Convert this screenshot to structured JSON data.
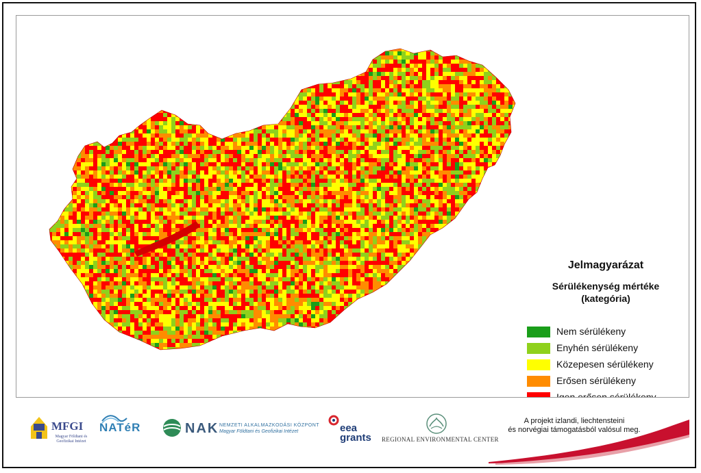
{
  "legend": {
    "title": "Jelmagyarázat",
    "subtitle": "Sérülékenység mértéke\n(kategória)",
    "items": [
      {
        "label": "Nem sérülékeny",
        "color": "#1a9e1a"
      },
      {
        "label": "Enyhén sérülékeny",
        "color": "#8fd11c"
      },
      {
        "label": "Közepesen sérülékeny",
        "color": "#ffff00"
      },
      {
        "label": "Erősen sérülékeny",
        "color": "#ff8c00"
      },
      {
        "label": "Igen erősen sérülékeny",
        "color": "#ff0000"
      }
    ]
  },
  "map": {
    "region": "Hungary",
    "dominant_colors": [
      "#ff0000",
      "#ff8c00",
      "#ffff00",
      "#8fd11c"
    ]
  },
  "footer": {
    "logos": {
      "mfgi": "MFGI",
      "mfgi_sub": "Magyar Földtani és\nGeofizikai Intézet",
      "nater": "NATéR",
      "nak": "NAK",
      "nak_sub1": "NEMZETI ALKALMAZKODÁSI KÖZPONT",
      "nak_sub2": "Magyar Földtani és Geofizikai Intézet",
      "eea": "eea\ngrants",
      "rec": "REGIONAL ENVIRONMENTAL CENTER"
    },
    "support_text": "A projekt izlandi, liechtensteini\nés norvégiai támogatásból valósul meg.",
    "accent_color": "#c8102e"
  }
}
